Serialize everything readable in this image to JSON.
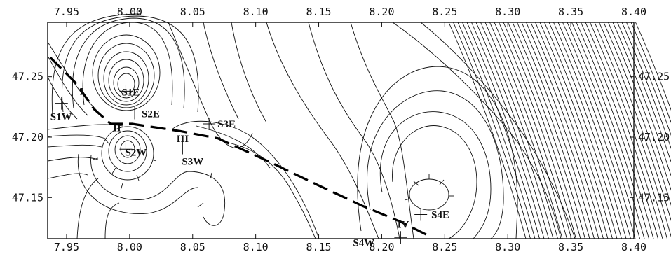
{
  "map": {
    "x_range": [
      7.935,
      8.4
    ],
    "y_range": [
      47.116,
      47.295
    ],
    "x_ticks": [
      "7.95",
      "8.00",
      "8.05",
      "8.10",
      "8.15",
      "8.20",
      "8.25",
      "8.30",
      "8.35",
      "8.40"
    ],
    "x_tick_values": [
      7.95,
      8.0,
      8.05,
      8.1,
      8.15,
      8.2,
      8.25,
      8.3,
      8.35,
      8.4
    ],
    "y_ticks": [
      "47.25",
      "47.20",
      "47.15"
    ],
    "y_tick_values": [
      47.25,
      47.2,
      47.15
    ],
    "sites": [
      {
        "label": "S1W",
        "lon": 7.946,
        "lat": 47.228
      },
      {
        "label": "S1E",
        "lon": 7.997,
        "lat": 47.238
      },
      {
        "label": "S2E",
        "lon": 8.004,
        "lat": 47.22
      },
      {
        "label": "S2W",
        "lon": 7.997,
        "lat": 47.19
      },
      {
        "label": "S3E",
        "lon": 8.063,
        "lat": 47.211
      },
      {
        "label": "S3W",
        "lon": 8.042,
        "lat": 47.191
      },
      {
        "label": "S4E",
        "lon": 8.231,
        "lat": 47.136
      },
      {
        "label": "S4W",
        "lon": 8.215,
        "lat": 47.117
      }
    ],
    "sections": [
      {
        "label": "I",
        "lon": 7.962,
        "lat": 47.235
      },
      {
        "label": "II",
        "lon": 7.99,
        "lat": 47.205
      },
      {
        "label": "III",
        "lon": 8.042,
        "lat": 47.196
      },
      {
        "label": "IV",
        "lon": 8.217,
        "lat": 47.125
      }
    ],
    "profile_line": [
      [
        7.937,
        47.266
      ],
      [
        7.958,
        47.244
      ],
      [
        7.972,
        47.223
      ],
      [
        7.985,
        47.211
      ],
      [
        8.002,
        47.211
      ],
      [
        8.04,
        47.205
      ],
      [
        8.07,
        47.199
      ],
      [
        8.11,
        47.18
      ],
      [
        8.15,
        47.16
      ],
      [
        8.185,
        47.143
      ],
      [
        8.215,
        47.13
      ],
      [
        8.238,
        47.118
      ]
    ]
  }
}
